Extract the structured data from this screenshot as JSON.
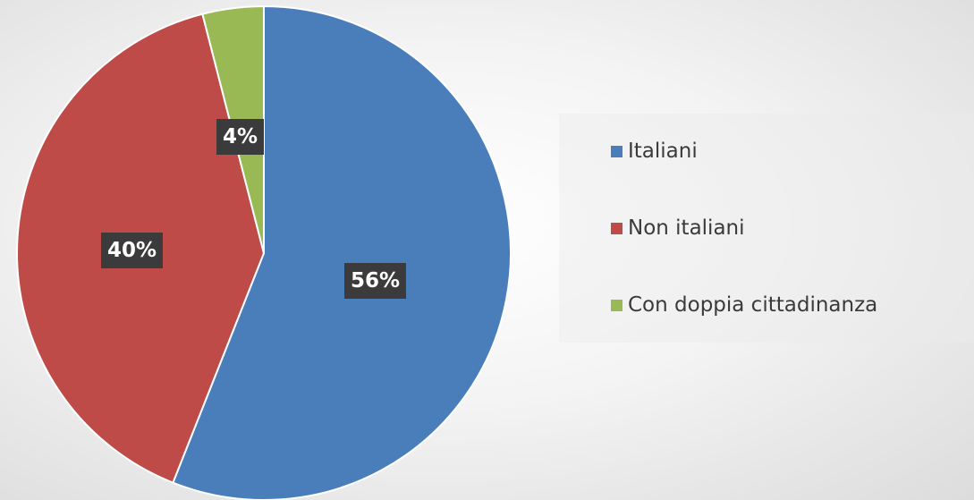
{
  "chart_data": {
    "type": "pie",
    "title": "",
    "slices": [
      {
        "name": "Italiani",
        "value": 56,
        "label": "56%",
        "color": "#4a7ebb"
      },
      {
        "name": "Non italiani",
        "value": 40,
        "label": "40%",
        "color": "#be4b48"
      },
      {
        "name": "Con doppia cittadinanza",
        "value": 4,
        "label": "4%",
        "color": "#98b954"
      }
    ],
    "legend_placement": "right"
  }
}
